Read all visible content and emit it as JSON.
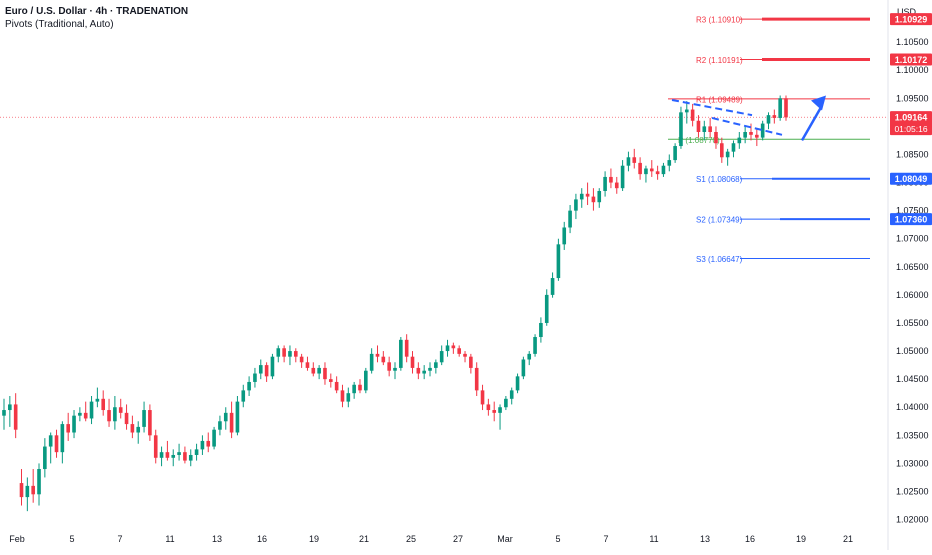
{
  "header": {
    "symbol_title": "Euro / U.S. Dollar · 4h · TRADENATION",
    "indicator": "Pivots (Traditional, Auto)"
  },
  "price_axis": {
    "currency": "USD",
    "ticks": [
      "1.02000",
      "1.02500",
      "1.03000",
      "1.03500",
      "1.04000",
      "1.04500",
      "1.05000",
      "1.05500",
      "1.06000",
      "1.06500",
      "1.07000",
      "1.07500",
      "1.08000",
      "1.08500",
      "1.09000",
      "1.09500",
      "1.10000",
      "1.10500",
      "1.11000"
    ]
  },
  "time_axis": {
    "ticks": [
      "Feb",
      "5",
      "7",
      "11",
      "13",
      "16",
      "19",
      "21",
      "25",
      "27",
      "Mar",
      "5",
      "7",
      "11",
      "13",
      "16",
      "19",
      "21"
    ]
  },
  "current_price": {
    "value": 1.09164,
    "label": "1.09164",
    "countdown": "01:05:16",
    "color": "#f23645"
  },
  "pivots": {
    "R3": {
      "label": "R3 (1.10910)",
      "value": 1.1091,
      "badge": "1.10929",
      "color": "#f23645"
    },
    "R2": {
      "label": "R2 (1.10191)",
      "value": 1.10191,
      "badge": "1.10172",
      "color": "#f23645"
    },
    "R1": {
      "label": "R1 (1.09489)",
      "value": 1.09489,
      "color": "#f23645"
    },
    "P": {
      "label": "P (1.08770)",
      "value": 1.0877,
      "color": "#4caf50"
    },
    "S1": {
      "label": "S1 (1.08068)",
      "value": 1.08068,
      "badge": "1.08049",
      "color": "#2962ff"
    },
    "S2": {
      "label": "S2 (1.07349)",
      "value": 1.07349,
      "badge": "1.07360",
      "color": "#2962ff"
    },
    "S3": {
      "label": "S3 (1.06647)",
      "value": 1.06647,
      "color": "#2962ff"
    }
  },
  "colors": {
    "up": "#089981",
    "down": "#f23645",
    "accent": "#2962ff",
    "grid": "#f0f3fa",
    "axis_text": "#131722"
  },
  "chart_data": {
    "type": "candlestick",
    "title": "Euro / U.S. Dollar · 4h · TRADENATION",
    "ylabel": "USD",
    "ylim": [
      1.0185,
      1.1125
    ],
    "grid": false,
    "series": [
      {
        "candles": [
          [
            1.0385,
            1.0415,
            1.036,
            1.0395
          ],
          [
            1.0395,
            1.042,
            1.0365,
            1.0405
          ],
          [
            1.0405,
            1.0425,
            1.0345,
            1.036
          ],
          [
            1.0265,
            1.029,
            1.0225,
            1.024
          ],
          [
            1.024,
            1.0275,
            1.0215,
            1.026
          ],
          [
            1.026,
            1.029,
            1.023,
            1.0245
          ],
          [
            1.0245,
            1.03,
            1.0225,
            1.029
          ],
          [
            1.029,
            1.0345,
            1.0275,
            1.033
          ],
          [
            1.033,
            1.0355,
            1.03,
            1.035
          ],
          [
            1.035,
            1.036,
            1.031,
            1.032
          ],
          [
            1.032,
            1.0375,
            1.03,
            1.037
          ],
          [
            1.037,
            1.039,
            1.034,
            1.0355
          ],
          [
            1.0355,
            1.0395,
            1.0345,
            1.0385
          ],
          [
            1.0385,
            1.04,
            1.0375,
            1.039
          ],
          [
            1.039,
            1.041,
            1.0375,
            1.038
          ],
          [
            1.038,
            1.042,
            1.037,
            1.041
          ],
          [
            1.041,
            1.0435,
            1.04,
            1.0415
          ],
          [
            1.0415,
            1.043,
            1.0385,
            1.0395
          ],
          [
            1.0395,
            1.0415,
            1.0365,
            1.0375
          ],
          [
            1.0375,
            1.042,
            1.036,
            1.04
          ],
          [
            1.04,
            1.0415,
            1.038,
            1.039
          ],
          [
            1.039,
            1.0405,
            1.036,
            1.037
          ],
          [
            1.037,
            1.0385,
            1.0345,
            1.0355
          ],
          [
            1.0355,
            1.0375,
            1.0335,
            1.0365
          ],
          [
            1.0365,
            1.041,
            1.0355,
            1.0395
          ],
          [
            1.0395,
            1.0405,
            1.034,
            1.035
          ],
          [
            1.035,
            1.036,
            1.03,
            1.031
          ],
          [
            1.031,
            1.033,
            1.0295,
            1.032
          ],
          [
            1.032,
            1.034,
            1.0305,
            1.031
          ],
          [
            1.031,
            1.0325,
            1.0295,
            1.0315
          ],
          [
            1.0315,
            1.0335,
            1.0305,
            1.032
          ],
          [
            1.032,
            1.033,
            1.03,
            1.0305
          ],
          [
            1.0305,
            1.0325,
            1.0295,
            1.0315
          ],
          [
            1.0315,
            1.0335,
            1.0305,
            1.0325
          ],
          [
            1.0325,
            1.035,
            1.0315,
            1.034
          ],
          [
            1.034,
            1.0355,
            1.032,
            1.033
          ],
          [
            1.033,
            1.0365,
            1.0325,
            1.036
          ],
          [
            1.036,
            1.0385,
            1.035,
            1.0375
          ],
          [
            1.0375,
            1.04,
            1.036,
            1.039
          ],
          [
            1.039,
            1.041,
            1.0345,
            1.0355
          ],
          [
            1.0355,
            1.042,
            1.035,
            1.041
          ],
          [
            1.041,
            1.044,
            1.04,
            1.043
          ],
          [
            1.043,
            1.0455,
            1.042,
            1.0445
          ],
          [
            1.0445,
            1.047,
            1.0435,
            1.046
          ],
          [
            1.046,
            1.0485,
            1.045,
            1.0475
          ],
          [
            1.0475,
            1.048,
            1.0445,
            1.0455
          ],
          [
            1.0455,
            1.0495,
            1.045,
            1.049
          ],
          [
            1.049,
            1.051,
            1.048,
            1.0505
          ],
          [
            1.0505,
            1.051,
            1.048,
            1.049
          ],
          [
            1.049,
            1.051,
            1.0475,
            1.05
          ],
          [
            1.05,
            1.0505,
            1.048,
            1.049
          ],
          [
            1.049,
            1.0495,
            1.047,
            1.048
          ],
          [
            1.048,
            1.049,
            1.0465,
            1.047
          ],
          [
            1.047,
            1.048,
            1.0455,
            1.046
          ],
          [
            1.046,
            1.0475,
            1.045,
            1.047
          ],
          [
            1.047,
            1.048,
            1.044,
            1.045
          ],
          [
            1.045,
            1.046,
            1.0435,
            1.0445
          ],
          [
            1.0445,
            1.0455,
            1.0425,
            1.043
          ],
          [
            1.043,
            1.044,
            1.04,
            1.041
          ],
          [
            1.041,
            1.0435,
            1.04,
            1.0425
          ],
          [
            1.0425,
            1.0445,
            1.0415,
            1.044
          ],
          [
            1.044,
            1.045,
            1.0425,
            1.043
          ],
          [
            1.043,
            1.047,
            1.0425,
            1.0465
          ],
          [
            1.0465,
            1.0505,
            1.046,
            1.0495
          ],
          [
            1.0495,
            1.051,
            1.048,
            1.049
          ],
          [
            1.049,
            1.05,
            1.0475,
            1.048
          ],
          [
            1.048,
            1.049,
            1.0455,
            1.0465
          ],
          [
            1.0465,
            1.048,
            1.045,
            1.047
          ],
          [
            1.047,
            1.0525,
            1.0465,
            1.052
          ],
          [
            1.052,
            1.053,
            1.048,
            1.049
          ],
          [
            1.049,
            1.05,
            1.046,
            1.047
          ],
          [
            1.047,
            1.048,
            1.045,
            1.046
          ],
          [
            1.046,
            1.0475,
            1.045,
            1.0465
          ],
          [
            1.0465,
            1.048,
            1.0455,
            1.047
          ],
          [
            1.047,
            1.0485,
            1.046,
            1.048
          ],
          [
            1.048,
            1.051,
            1.0475,
            1.05
          ],
          [
            1.05,
            1.052,
            1.049,
            1.051
          ],
          [
            1.051,
            1.0515,
            1.0495,
            1.0505
          ],
          [
            1.0505,
            1.051,
            1.049,
            1.0495
          ],
          [
            1.0495,
            1.05,
            1.048,
            1.049
          ],
          [
            1.049,
            1.0495,
            1.046,
            1.047
          ],
          [
            1.047,
            1.048,
            1.042,
            1.043
          ],
          [
            1.043,
            1.044,
            1.0395,
            1.0405
          ],
          [
            1.0405,
            1.0415,
            1.0385,
            1.0395
          ],
          [
            1.0395,
            1.041,
            1.0375,
            1.039
          ],
          [
            1.039,
            1.0405,
            1.036,
            1.04
          ],
          [
            1.04,
            1.042,
            1.0395,
            1.0415
          ],
          [
            1.0415,
            1.0435,
            1.0405,
            1.043
          ],
          [
            1.043,
            1.046,
            1.0425,
            1.0455
          ],
          [
            1.0455,
            1.049,
            1.045,
            1.0485
          ],
          [
            1.0485,
            1.05,
            1.0475,
            1.0495
          ],
          [
            1.0495,
            1.053,
            1.049,
            1.0525
          ],
          [
            1.0525,
            1.056,
            1.0515,
            1.055
          ],
          [
            1.055,
            1.061,
            1.0545,
            1.06
          ],
          [
            1.06,
            1.064,
            1.0595,
            1.063
          ],
          [
            1.063,
            1.07,
            1.0625,
            1.069
          ],
          [
            1.069,
            1.073,
            1.068,
            1.072
          ],
          [
            1.072,
            1.076,
            1.071,
            1.075
          ],
          [
            1.075,
            1.078,
            1.0735,
            1.077
          ],
          [
            1.077,
            1.079,
            1.0755,
            1.078
          ],
          [
            1.078,
            1.08,
            1.076,
            1.0775
          ],
          [
            1.0775,
            1.079,
            1.075,
            1.0765
          ],
          [
            1.0765,
            1.079,
            1.0755,
            1.0785
          ],
          [
            1.0785,
            1.082,
            1.0775,
            1.081
          ],
          [
            1.081,
            1.0825,
            1.079,
            1.08
          ],
          [
            1.08,
            1.081,
            1.078,
            1.079
          ],
          [
            1.079,
            1.084,
            1.0785,
            1.083
          ],
          [
            1.083,
            1.0855,
            1.082,
            1.0845
          ],
          [
            1.0845,
            1.086,
            1.0825,
            1.0835
          ],
          [
            1.0835,
            1.0845,
            1.0805,
            1.0815
          ],
          [
            1.0815,
            1.083,
            1.08,
            1.0825
          ],
          [
            1.0825,
            1.084,
            1.081,
            1.082
          ],
          [
            1.082,
            1.083,
            1.0805,
            1.0815
          ],
          [
            1.0815,
            1.0835,
            1.081,
            1.083
          ],
          [
            1.083,
            1.085,
            1.082,
            1.084
          ],
          [
            1.084,
            1.087,
            1.0835,
            1.0865
          ],
          [
            1.0865,
            1.0935,
            1.086,
            1.0925
          ],
          [
            1.0925,
            1.0945,
            1.0905,
            1.093
          ],
          [
            1.093,
            1.094,
            1.09,
            1.091
          ],
          [
            1.091,
            1.092,
            1.088,
            1.089
          ],
          [
            1.089,
            1.091,
            1.0875,
            1.09
          ],
          [
            1.09,
            1.0915,
            1.088,
            1.089
          ],
          [
            1.089,
            1.09,
            1.086,
            1.087
          ],
          [
            1.087,
            1.088,
            1.0835,
            1.0845
          ],
          [
            1.0845,
            1.086,
            1.083,
            1.0855
          ],
          [
            1.0855,
            1.0875,
            1.0845,
            1.087
          ],
          [
            1.087,
            1.089,
            1.086,
            1.088
          ],
          [
            1.088,
            1.09,
            1.087,
            1.089
          ],
          [
            1.089,
            1.0905,
            1.0875,
            1.0885
          ],
          [
            1.0885,
            1.0895,
            1.0865,
            1.088
          ],
          [
            1.088,
            1.091,
            1.0875,
            1.0905
          ],
          [
            1.0905,
            1.0925,
            1.0895,
            1.092
          ],
          [
            1.092,
            1.093,
            1.0905,
            1.0915
          ],
          [
            1.0915,
            1.0955,
            1.091,
            1.095
          ],
          [
            1.095,
            1.0955,
            1.091,
            1.0916
          ]
        ]
      }
    ],
    "pivot_levels": {
      "R3": 1.1091,
      "R2": 1.10191,
      "R1": 1.09489,
      "P": 1.0877,
      "S1": 1.08068,
      "S2": 1.07349,
      "S3": 1.06647
    },
    "annotations": [
      {
        "type": "dashed-trendline",
        "color": "#2962ff"
      },
      {
        "type": "arrow",
        "direction": "up",
        "color": "#2962ff"
      }
    ]
  }
}
